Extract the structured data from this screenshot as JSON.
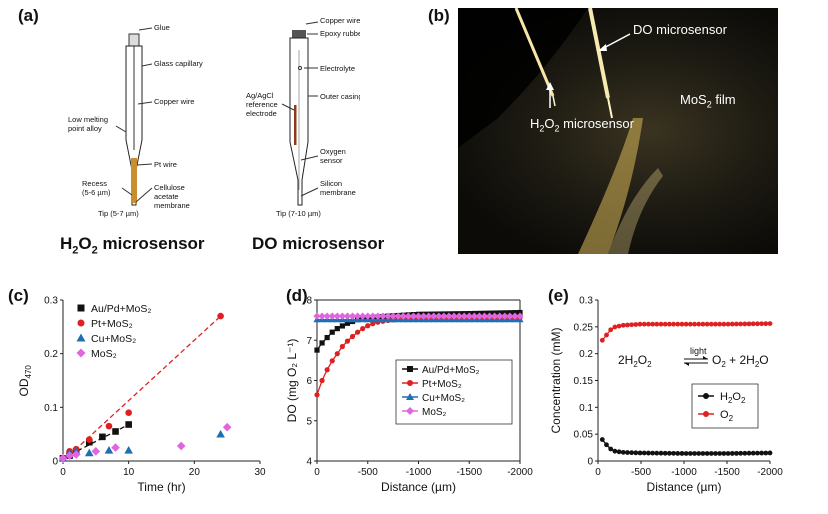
{
  "panel_labels": {
    "a": "(a)",
    "b": "(b)",
    "c": "(c)",
    "d": "(d)",
    "e": "(e)"
  },
  "panel_a": {
    "h2o2_title_parts": [
      "H",
      "2",
      "O",
      "2",
      " microsensor"
    ],
    "do_title": "DO microsensor",
    "h2o2_labels": [
      "Glue",
      "Glass capillary",
      "Copper wire",
      "Low melting",
      "point alloy",
      "Pt wire",
      "Recess",
      "(5-6 µm)",
      "Cellulose",
      "acetate",
      "membrane",
      "Tip (5-7 µm)"
    ],
    "do_labels": [
      "Copper wire",
      "Epoxy rubber",
      "Electrolyte",
      "Ag/AgCl",
      "reference",
      "electrode",
      "Outer casing",
      "Oxygen",
      "sensor",
      "Silicon",
      "membrane",
      "Tip (7-10 µm)"
    ]
  },
  "panel_b": {
    "do_label": "DO microsensor",
    "h2o2_label_parts": [
      "H",
      "2",
      "O",
      "2",
      " microsensor"
    ],
    "film_label_parts": [
      "MoS",
      "2",
      " film"
    ]
  },
  "chart_data": [
    {
      "id": "c",
      "type": "scatter",
      "xlabel": "Time (hr)",
      "ylabel_parts": [
        "OD",
        "470"
      ],
      "xlim": [
        0,
        30
      ],
      "ylim": [
        0,
        0.3
      ],
      "xticks": [
        "0",
        "10",
        "20",
        "30"
      ],
      "yticks": [
        "0",
        "0.1",
        "0.2",
        "0.3"
      ],
      "legend": "top-left",
      "series": [
        {
          "name": "Au/Pd+MoS₂",
          "color": "#111111",
          "marker": "square",
          "x": [
            0,
            1,
            2,
            4,
            6,
            8,
            10
          ],
          "y": [
            0.005,
            0.01,
            0.018,
            0.035,
            0.045,
            0.055,
            0.068
          ]
        },
        {
          "name": "Pt+MoS₂",
          "color": "#e02020",
          "marker": "circle",
          "x": [
            0,
            1,
            2,
            4,
            7,
            10,
            24
          ],
          "y": [
            0.005,
            0.018,
            0.022,
            0.04,
            0.065,
            0.09,
            0.27
          ]
        },
        {
          "name": "Cu+MoS₂",
          "color": "#1f6fb5",
          "marker": "triangle",
          "x": [
            0,
            1,
            2,
            4,
            7,
            10,
            24
          ],
          "y": [
            0.005,
            0.015,
            0.018,
            0.015,
            0.02,
            0.02,
            0.05
          ]
        },
        {
          "name": "MoS₂",
          "color": "#e066e0",
          "marker": "diamond",
          "x": [
            0,
            1,
            2,
            5,
            8,
            18,
            25
          ],
          "y": [
            0.005,
            0.01,
            0.012,
            0.018,
            0.025,
            0.028,
            0.063
          ]
        }
      ]
    },
    {
      "id": "d",
      "type": "line",
      "xlabel": "Distance (µm)",
      "ylabel": "DO (mg O₂ L⁻¹)",
      "xlim": [
        0,
        -2000
      ],
      "ylim": [
        4,
        8.5
      ],
      "xticks": [
        "0",
        "-500",
        "-1000",
        "-1500",
        "-2000"
      ],
      "yticks": [
        "4",
        "5",
        "6",
        "7",
        "8"
      ],
      "legend": "bottom-right",
      "series": [
        {
          "name": "Au/Pd+MoS₂",
          "color": "#111111",
          "marker": "square",
          "x": [
            0,
            -50,
            -100,
            -150,
            -200,
            -300,
            -400,
            -500,
            -700,
            -1000,
            -1500,
            -2000
          ],
          "y": [
            7.1,
            7.3,
            7.45,
            7.6,
            7.7,
            7.85,
            7.95,
            8.0,
            8.05,
            8.1,
            8.12,
            8.15
          ]
        },
        {
          "name": "Pt+MoS₂",
          "color": "#e02020",
          "marker": "circle",
          "x": [
            0,
            -50,
            -100,
            -150,
            -200,
            -250,
            -300,
            -350,
            -400,
            -450,
            -500,
            -550,
            -600,
            -700,
            -800,
            -900,
            -1000,
            -1500,
            -2000
          ],
          "y": [
            5.85,
            6.25,
            6.55,
            6.8,
            7.0,
            7.2,
            7.35,
            7.48,
            7.6,
            7.7,
            7.78,
            7.84,
            7.88,
            7.93,
            7.96,
            7.98,
            8.0,
            8.0,
            8.0
          ]
        },
        {
          "name": "Cu+MoS₂",
          "color": "#1f6fb5",
          "marker": "triangle",
          "x": [
            0,
            -500,
            -1000,
            -1500,
            -2000
          ],
          "y": [
            7.95,
            7.95,
            7.95,
            7.95,
            7.95
          ]
        },
        {
          "name": "MoS₂",
          "color": "#e066e0",
          "marker": "diamond",
          "x": [
            0,
            -500,
            -1000,
            -1500,
            -2000
          ],
          "y": [
            8.05,
            8.05,
            8.05,
            8.05,
            8.05
          ]
        }
      ]
    },
    {
      "id": "e",
      "type": "line",
      "xlabel": "Distance (µm)",
      "ylabel": "Concentration (mM)",
      "xlim": [
        0,
        -2000
      ],
      "ylim": [
        0,
        0.3
      ],
      "xticks": [
        "0",
        "-500",
        "-1000",
        "-1500",
        "-2000"
      ],
      "yticks": [
        "0",
        "0.05",
        "0.1",
        "0.15",
        "0.2",
        "0.25",
        "0.3"
      ],
      "legend": "center-right",
      "annotation": {
        "lhs_parts": [
          "2H",
          "2",
          "O",
          "2"
        ],
        "rhs_parts": [
          "O",
          "2",
          " + 2H",
          "2",
          "O"
        ],
        "arrow_label": "light"
      },
      "series": [
        {
          "name_parts": [
            "H",
            "2",
            "O",
            "2"
          ],
          "color": "#111111",
          "marker": "circle",
          "x": [
            -50,
            -100,
            -150,
            -200,
            -300,
            -500,
            -1000,
            -1500,
            -2000
          ],
          "y": [
            0.04,
            0.03,
            0.022,
            0.018,
            0.016,
            0.015,
            0.014,
            0.014,
            0.015
          ]
        },
        {
          "name_parts": [
            "O",
            "2"
          ],
          "color": "#e02020",
          "marker": "circle",
          "x": [
            -50,
            -100,
            -150,
            -200,
            -300,
            -500,
            -1000,
            -1500,
            -2000
          ],
          "y": [
            0.225,
            0.235,
            0.245,
            0.25,
            0.253,
            0.255,
            0.255,
            0.255,
            0.256
          ]
        }
      ]
    }
  ]
}
